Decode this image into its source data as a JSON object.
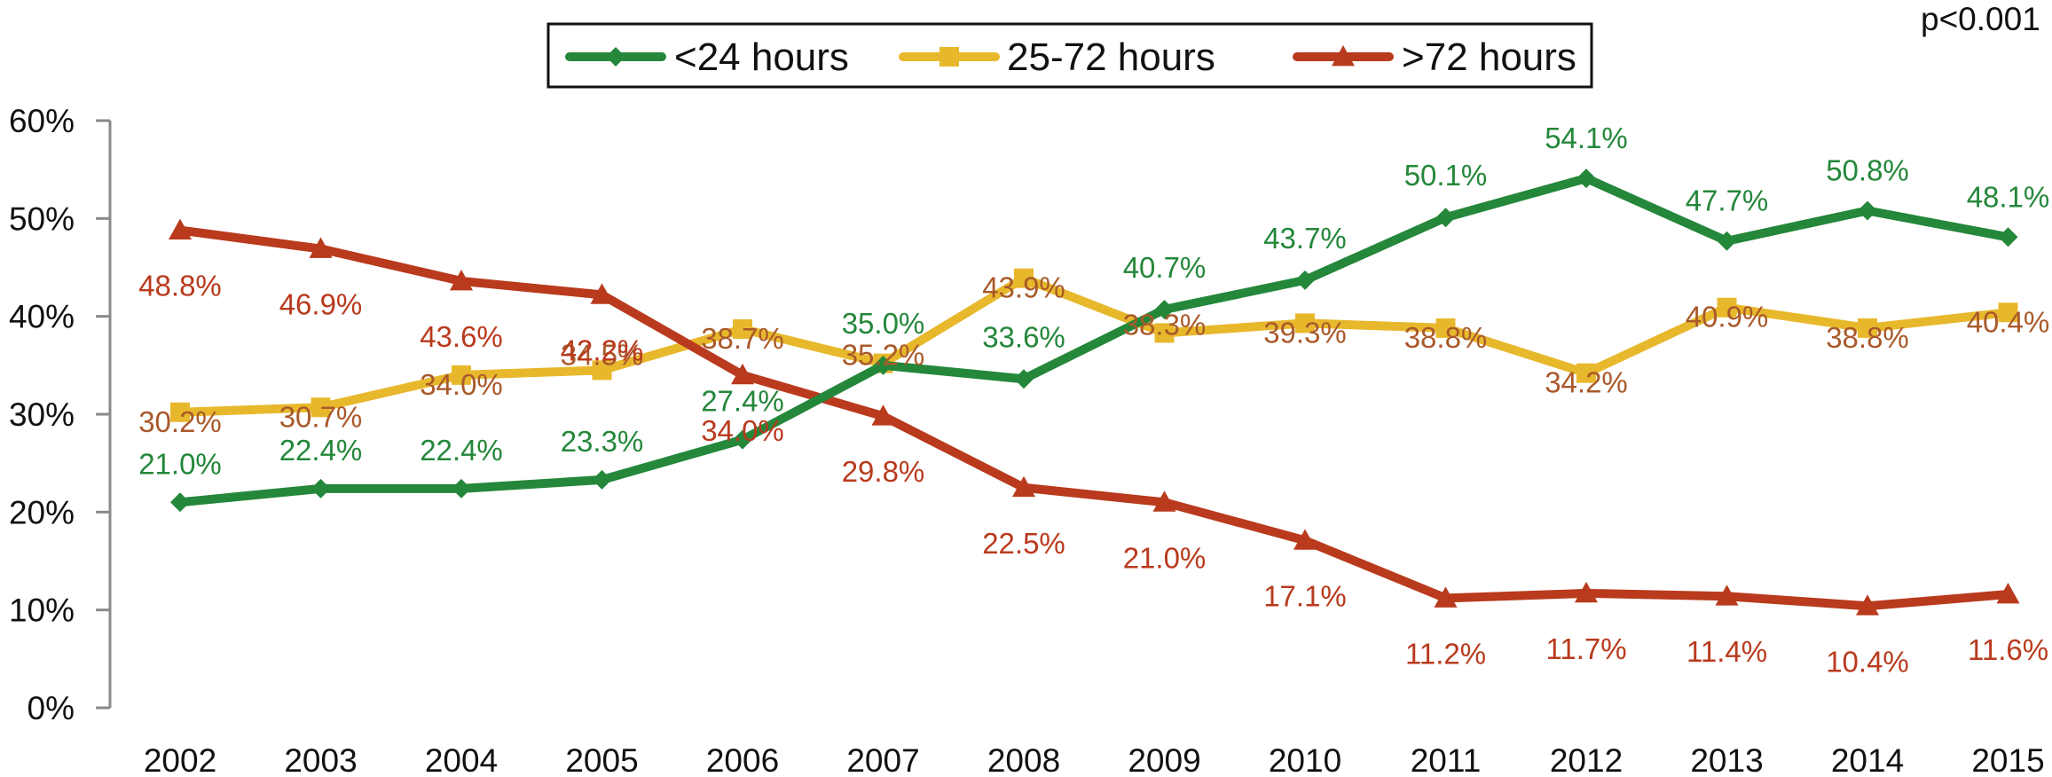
{
  "chart_data": {
    "type": "line",
    "categories": [
      "2002",
      "2003",
      "2004",
      "2005",
      "2006",
      "2007",
      "2008",
      "2009",
      "2010",
      "2011",
      "2012",
      "2013",
      "2014",
      "2015"
    ],
    "y_tick_labels": [
      "0%",
      "10%",
      "20%",
      "30%",
      "40%",
      "50%",
      "60%"
    ],
    "ylim": [
      0,
      60
    ],
    "legend_position": "top-center",
    "annotation": "p<0.001",
    "series": [
      {
        "name": "<24 hours",
        "color": "#24873a",
        "label_color": "#24873a",
        "marker": "diamond",
        "values": [
          21.0,
          22.4,
          22.4,
          23.3,
          27.4,
          35.0,
          33.6,
          40.7,
          43.7,
          50.1,
          54.1,
          47.7,
          50.8,
          48.1
        ],
        "labels": [
          "21.0%",
          "22.4%",
          "22.4%",
          "23.3%",
          "27.4%",
          "35.0%",
          "33.6%",
          "40.7%",
          "43.7%",
          "50.1%",
          "54.1%",
          "47.7%",
          "50.8%",
          "48.1%"
        ]
      },
      {
        "name": "25-72 hours",
        "color": "#e8b82c",
        "label_color": "#a9592a",
        "marker": "square",
        "values": [
          30.2,
          30.7,
          34.0,
          34.5,
          38.7,
          35.2,
          43.9,
          38.3,
          39.3,
          38.8,
          34.2,
          40.9,
          38.8,
          40.4
        ],
        "labels": [
          "30.2%",
          "30.7%",
          "34.0%",
          "34.5%",
          "38.7%",
          "35.2%",
          "43.9%",
          "38.3%",
          "39.3%",
          "38.8%",
          "34.2%",
          "40.9%",
          "38.8%",
          "40.4%"
        ]
      },
      {
        "name": ">72 hours",
        "color": "#b93a1d",
        "label_color": "#b93a1d",
        "marker": "triangle",
        "values": [
          48.8,
          46.9,
          43.6,
          42.2,
          34.0,
          29.8,
          22.5,
          21.0,
          17.1,
          11.2,
          11.7,
          11.4,
          10.4,
          11.6
        ],
        "labels": [
          "48.8%",
          "46.9%",
          "43.6%",
          "42.2%",
          "34.0%",
          "29.8%",
          "22.5%",
          "21.0%",
          "17.1%",
          "11.2%",
          "11.7%",
          "11.4%",
          "10.4%",
          "11.6%"
        ]
      }
    ]
  }
}
